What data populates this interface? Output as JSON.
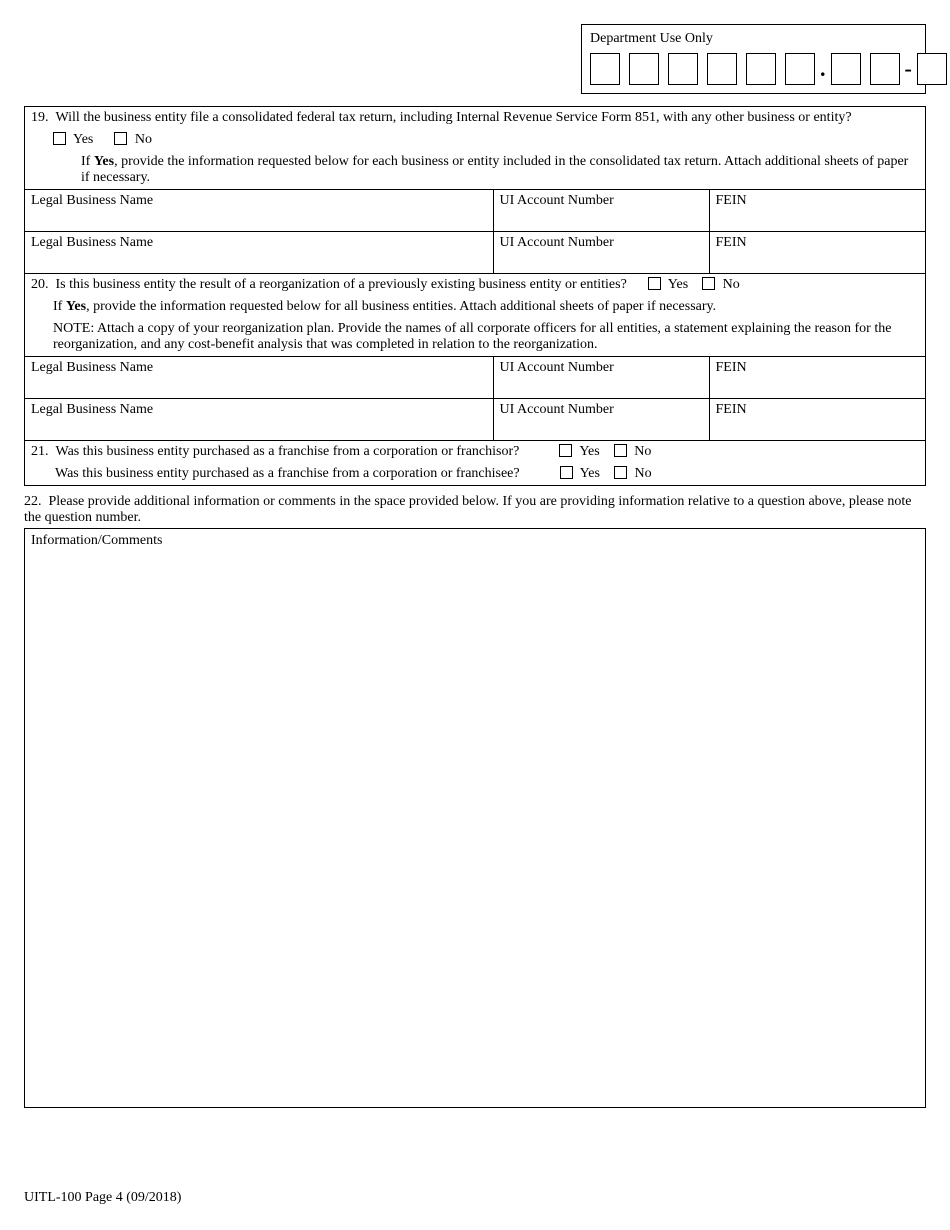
{
  "dept_use_only": {
    "label": "Department Use Only",
    "group1_digits": 6,
    "sep1": ".",
    "group2_digits": 2,
    "sep2": "-",
    "group3_digits": 1
  },
  "q19": {
    "number": "19.",
    "text": "Will the business entity file a consolidated federal tax return, including Internal Revenue Service Form 851, with any other business or entity?",
    "yes_label": "Yes",
    "no_label": "No",
    "if_yes_prefix": "If ",
    "if_yes_bold": "Yes",
    "if_yes_rest": ", provide the information requested below for each business or entity included in the consolidated tax return.  Attach additional sheets of paper if necessary."
  },
  "entity_headers": {
    "name": "Legal Business Name",
    "ui": "UI Account Number",
    "fein": "FEIN"
  },
  "q20": {
    "number": "20.",
    "text": "Is this business entity the result of a reorganization of a previously existing business entity or entities?",
    "yes_label": "Yes",
    "no_label": "No",
    "if_yes_prefix": "If ",
    "if_yes_bold": "Yes",
    "if_yes_rest": ", provide the information requested below for all business entities.  Attach additional sheets of paper if necessary.",
    "note": "NOTE:  Attach a copy of your reorganization plan.  Provide the names of all corporate officers for all entities, a statement explaining the reason for the reorganization, and any cost-benefit analysis that was completed in relation to the reorganization."
  },
  "q21": {
    "number": "21.",
    "line1": "Was this business entity purchased as a franchise from a corporation or franchisor?",
    "line2": "Was this business entity purchased as a franchise from a corporation or franchisee?",
    "yes_label": "Yes",
    "no_label": "No"
  },
  "q22": {
    "number": "22.",
    "text": "Please provide additional information or comments in the space provided below.  If you are providing information relative to a question above, please note the question number.",
    "box_label": "Information/Comments"
  },
  "footer": "UITL-100 Page 4 (09/2018)"
}
